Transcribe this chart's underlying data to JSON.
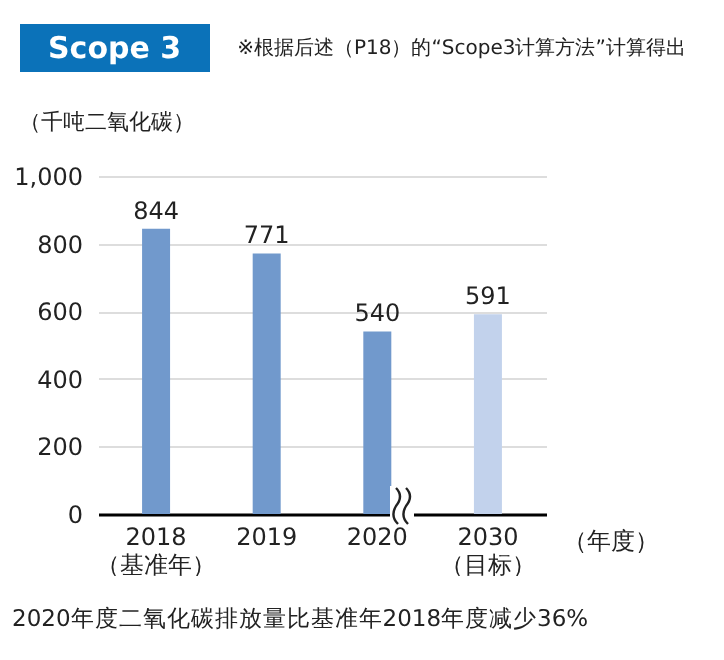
{
  "chart_data": {
    "type": "bar",
    "title": "Scope 3",
    "subtitle": "※根据后述（P18）的“Scope3计算方法”计算得出",
    "ylabel": "（千吨二氧化碳）",
    "xlabel": "（年度）",
    "categories": [
      "2018\n（基准年）",
      "2019",
      "2020",
      "2030\n（目标）"
    ],
    "values": [
      844,
      771,
      540,
      591
    ],
    "colors": [
      "#7199cc",
      "#7199cc",
      "#7199cc",
      "#c2d2ec"
    ],
    "ylim": [
      0,
      1000
    ],
    "yticks": [
      0,
      200,
      400,
      600,
      800,
      {
        "value": 1000,
        "label": "1,000"
      }
    ],
    "grid": "y",
    "data_labels": true,
    "annotations": [
      "2020年度二氧化碳排放量比基准年2018年度减少36%"
    ]
  }
}
